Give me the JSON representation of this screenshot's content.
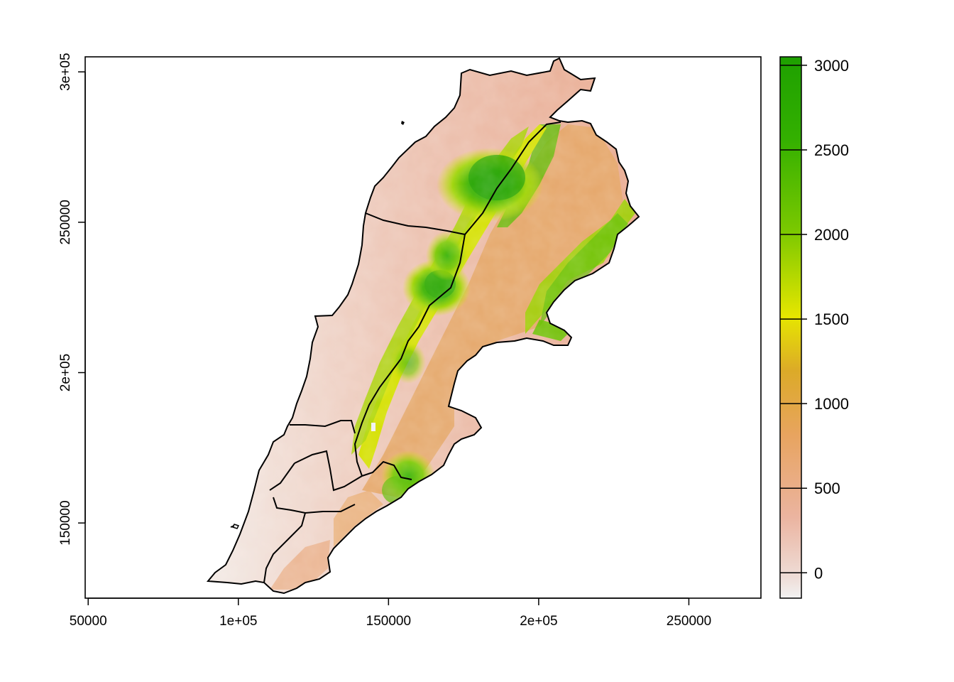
{
  "map": {
    "x_axis": {
      "range": [
        49000,
        274000
      ],
      "ticks": [
        {
          "value": 50000,
          "label": "50000"
        },
        {
          "value": 100000,
          "label": "1e+05"
        },
        {
          "value": 150000,
          "label": "150000"
        },
        {
          "value": 200000,
          "label": "2e+05"
        },
        {
          "value": 250000,
          "label": "250000"
        }
      ]
    },
    "y_axis": {
      "range": [
        125000,
        305000
      ],
      "ticks": [
        {
          "value": 150000,
          "label": "150000"
        },
        {
          "value": 200000,
          "label": "2e+05"
        },
        {
          "value": 250000,
          "label": "250000"
        },
        {
          "value": 300000,
          "label": "3e+05"
        }
      ]
    },
    "legend": {
      "range": [
        -150,
        3050
      ],
      "ticks": [
        {
          "value": 0,
          "label": "0"
        },
        {
          "value": 500,
          "label": "500"
        },
        {
          "value": 1000,
          "label": "1000"
        },
        {
          "value": 1500,
          "label": "1500"
        },
        {
          "value": 2000,
          "label": "2000"
        },
        {
          "value": 2500,
          "label": "2500"
        },
        {
          "value": 3000,
          "label": "3000"
        }
      ],
      "colors": [
        "#f2f2f2",
        "#ebb4a0",
        "#e8a460",
        "#dcaa28",
        "#e6e600",
        "#7ac800",
        "#33b000",
        "#1ea000"
      ]
    }
  }
}
